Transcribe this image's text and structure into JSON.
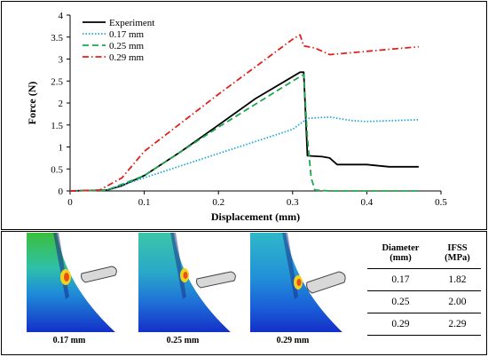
{
  "chart_data": {
    "type": "line",
    "title": "",
    "xlabel": "Displacement (mm)",
    "ylabel": "Force (N)",
    "xlim": [
      0,
      0.5
    ],
    "ylim": [
      0,
      4
    ],
    "xticks": [
      "0",
      "0.1",
      "0.2",
      "0.3",
      "0.4",
      "0.5"
    ],
    "yticks": [
      "0",
      "0.5",
      "1",
      "1.5",
      "2",
      "2.5",
      "3",
      "3.5",
      "4"
    ],
    "grid": false,
    "legend_position": "top-left",
    "series": [
      {
        "name": "Experiment",
        "color": "#000000",
        "dash": "solid",
        "x": [
          0,
          0.05,
          0.07,
          0.1,
          0.15,
          0.2,
          0.25,
          0.3,
          0.31,
          0.315,
          0.32,
          0.34,
          0.35,
          0.36,
          0.4,
          0.43,
          0.47
        ],
        "y": [
          0,
          0.02,
          0.12,
          0.35,
          0.9,
          1.5,
          2.1,
          2.6,
          2.7,
          2.7,
          0.8,
          0.78,
          0.75,
          0.6,
          0.6,
          0.55,
          0.55
        ]
      },
      {
        "name": "0.17 mm",
        "color": "#1ea8dc",
        "dash": "dotted",
        "x": [
          0,
          0.05,
          0.1,
          0.2,
          0.3,
          0.32,
          0.35,
          0.38,
          0.4,
          0.47
        ],
        "y": [
          0,
          0.02,
          0.3,
          0.85,
          1.4,
          1.65,
          1.68,
          1.6,
          1.58,
          1.62
        ]
      },
      {
        "name": "0.25 mm",
        "color": "#1aa84a",
        "dash": "dashed",
        "x": [
          0,
          0.05,
          0.1,
          0.2,
          0.3,
          0.315,
          0.32,
          0.325,
          0.33,
          0.35,
          0.47
        ],
        "y": [
          0,
          0.02,
          0.35,
          1.45,
          2.5,
          2.65,
          1.2,
          0.3,
          0.02,
          0,
          0
        ]
      },
      {
        "name": "0.29 mm",
        "color": "#e0201b",
        "dash": "dashdot",
        "x": [
          0,
          0.04,
          0.07,
          0.1,
          0.2,
          0.3,
          0.31,
          0.315,
          0.33,
          0.35,
          0.47
        ],
        "y": [
          0,
          0.02,
          0.3,
          0.9,
          2.2,
          3.45,
          3.55,
          3.3,
          3.25,
          3.1,
          3.28
        ]
      }
    ]
  },
  "simulations": [
    {
      "caption": "0.17 mm"
    },
    {
      "caption": "0.25 mm"
    },
    {
      "caption": "0.29 mm"
    }
  ],
  "table": {
    "headers": [
      {
        "line1": "Diameter",
        "line2": "(mm)"
      },
      {
        "line1": "IFSS",
        "line2": "(MPa)"
      }
    ],
    "rows": [
      [
        "0.17",
        "1.82"
      ],
      [
        "0.25",
        "2.00"
      ],
      [
        "0.29",
        "2.29"
      ]
    ]
  }
}
